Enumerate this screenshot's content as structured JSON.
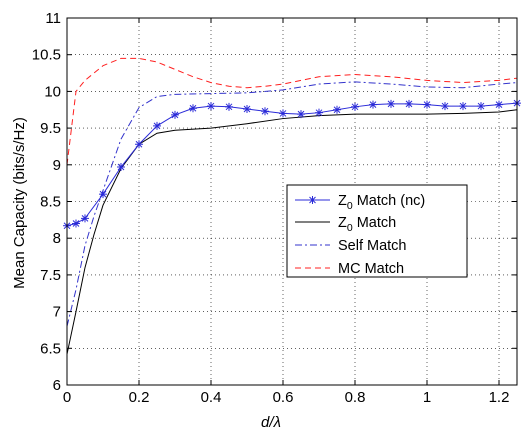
{
  "chart_data": {
    "type": "line",
    "title": "",
    "xlabel": "d/λ",
    "xlabel_main": "d/",
    "xlabel_lambda": "λ",
    "ylabel": "Mean Capacity (bits/s/Hz)",
    "xlim": [
      0,
      1.25
    ],
    "ylim": [
      6,
      11
    ],
    "grid": true,
    "legend_position": "right-middle",
    "x_ticks": [
      0,
      0.2,
      0.4,
      0.6,
      0.8,
      1,
      1.2
    ],
    "x_tick_labels": [
      "0",
      "0.2",
      "0.4",
      "0.6",
      "0.8",
      "1",
      "1.2"
    ],
    "y_ticks": [
      6,
      6.5,
      7,
      7.5,
      8,
      8.5,
      9,
      9.5,
      10,
      10.5,
      11
    ],
    "y_tick_labels": [
      "6",
      "6.5",
      "7",
      "7.5",
      "8",
      "8.5",
      "9",
      "9.5",
      "10",
      "10.5",
      "11"
    ],
    "series": [
      {
        "name": "Z0 Match (nc)",
        "legend_main": "Z",
        "legend_sub": "0",
        "legend_rest": " Match (nc)",
        "color": "#2b2bd8",
        "dash": "solid",
        "marker": "star",
        "x": [
          0,
          0.025,
          0.05,
          0.1,
          0.15,
          0.2,
          0.25,
          0.3,
          0.35,
          0.4,
          0.45,
          0.5,
          0.55,
          0.6,
          0.65,
          0.7,
          0.75,
          0.8,
          0.85,
          0.9,
          0.95,
          1.0,
          1.05,
          1.1,
          1.15,
          1.2,
          1.25
        ],
        "y": [
          8.17,
          8.2,
          8.27,
          8.6,
          8.97,
          9.28,
          9.53,
          9.68,
          9.77,
          9.8,
          9.79,
          9.76,
          9.73,
          9.7,
          9.69,
          9.71,
          9.75,
          9.79,
          9.82,
          9.83,
          9.83,
          9.82,
          9.8,
          9.8,
          9.8,
          9.82,
          9.84
        ]
      },
      {
        "name": "Z0 Match",
        "legend_main": "Z",
        "legend_sub": "0",
        "legend_rest": " Match",
        "color": "#000000",
        "dash": "solid",
        "marker": "none",
        "x": [
          0,
          0.025,
          0.05,
          0.075,
          0.1,
          0.15,
          0.2,
          0.25,
          0.3,
          0.4,
          0.5,
          0.6,
          0.7,
          0.8,
          0.9,
          1.0,
          1.1,
          1.2,
          1.25
        ],
        "y": [
          6.42,
          7.0,
          7.6,
          8.05,
          8.45,
          8.95,
          9.28,
          9.43,
          9.47,
          9.5,
          9.56,
          9.63,
          9.67,
          9.69,
          9.69,
          9.69,
          9.7,
          9.72,
          9.75
        ]
      },
      {
        "name": "Self Match",
        "legend_main": "Self Match",
        "legend_sub": "",
        "legend_rest": "",
        "color": "#3333cc",
        "dash": "dashdot",
        "marker": "none",
        "x": [
          0,
          0.025,
          0.05,
          0.075,
          0.1,
          0.15,
          0.2,
          0.25,
          0.3,
          0.4,
          0.5,
          0.6,
          0.7,
          0.8,
          0.9,
          1.0,
          1.1,
          1.2,
          1.25
        ],
        "y": [
          6.8,
          7.3,
          7.9,
          8.3,
          8.65,
          9.35,
          9.78,
          9.93,
          9.96,
          9.97,
          9.98,
          10.02,
          10.1,
          10.13,
          10.1,
          10.06,
          10.05,
          10.1,
          10.12
        ]
      },
      {
        "name": "MC Match",
        "legend_main": "MC Match",
        "legend_sub": "",
        "legend_rest": "",
        "color": "#ff2020",
        "dash": "dashed",
        "marker": "none",
        "x": [
          0,
          0.025,
          0.05,
          0.1,
          0.15,
          0.2,
          0.25,
          0.3,
          0.35,
          0.4,
          0.45,
          0.5,
          0.55,
          0.6,
          0.7,
          0.8,
          0.9,
          1.0,
          1.1,
          1.2,
          1.25
        ],
        "y": [
          9.0,
          10.0,
          10.15,
          10.35,
          10.45,
          10.45,
          10.4,
          10.3,
          10.2,
          10.12,
          10.07,
          10.05,
          10.07,
          10.1,
          10.2,
          10.23,
          10.2,
          10.15,
          10.12,
          10.15,
          10.18
        ]
      }
    ]
  }
}
